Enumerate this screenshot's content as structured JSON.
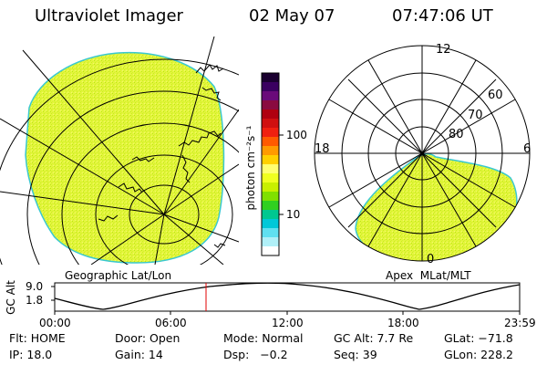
{
  "header": {
    "title": "Ultraviolet Imager",
    "date": "02 May 07",
    "time": "07:47:06 UT"
  },
  "colorbar": {
    "unit_label": "photon cm⁻²s⁻¹",
    "tick_100": "100",
    "tick_10": "10",
    "colors_top_to_bottom": [
      "#1a0030",
      "#3a0060",
      "#6a0a7a",
      "#8a0a40",
      "#b00010",
      "#d01010",
      "#f02010",
      "#ff5a00",
      "#ff9a00",
      "#ffd000",
      "#ffff70",
      "#f0ff20",
      "#c8f000",
      "#80e000",
      "#30d020",
      "#00c890",
      "#00c8d8",
      "#60e0f0",
      "#b0f0f8",
      "#ffffff"
    ]
  },
  "left_panel": {
    "caption": "Geographic Lat/Lon",
    "fill_color": "#e4f53c",
    "edge_color": "#3ac8d0"
  },
  "right_panel": {
    "caption": "Apex  MLat/MLT",
    "label_12": "12",
    "label_18": "18",
    "label_6": "6",
    "label_0": "0",
    "label_60": "60",
    "label_70": "70",
    "label_80": "80"
  },
  "altitude_plot": {
    "ylabel": "GC Alt",
    "ytick_high": "9.0",
    "ytick_low": "1.8",
    "xticks": [
      "00:00",
      "06:00",
      "12:00",
      "18:00",
      "23:59"
    ],
    "marker_color": "#e00000"
  },
  "info": {
    "flt": "Flt: HOME",
    "door": "Door: Open",
    "mode": "Mode: Normal",
    "gc_alt": "GC Alt: 7.7 Re",
    "glat": "GLat: −71.8",
    "ip": "IP: 18.0",
    "gain": "Gain: 14",
    "dsp": "Dsp:   −0.2",
    "seq": "Seq: 39",
    "glon": "GLon: 228.2"
  }
}
